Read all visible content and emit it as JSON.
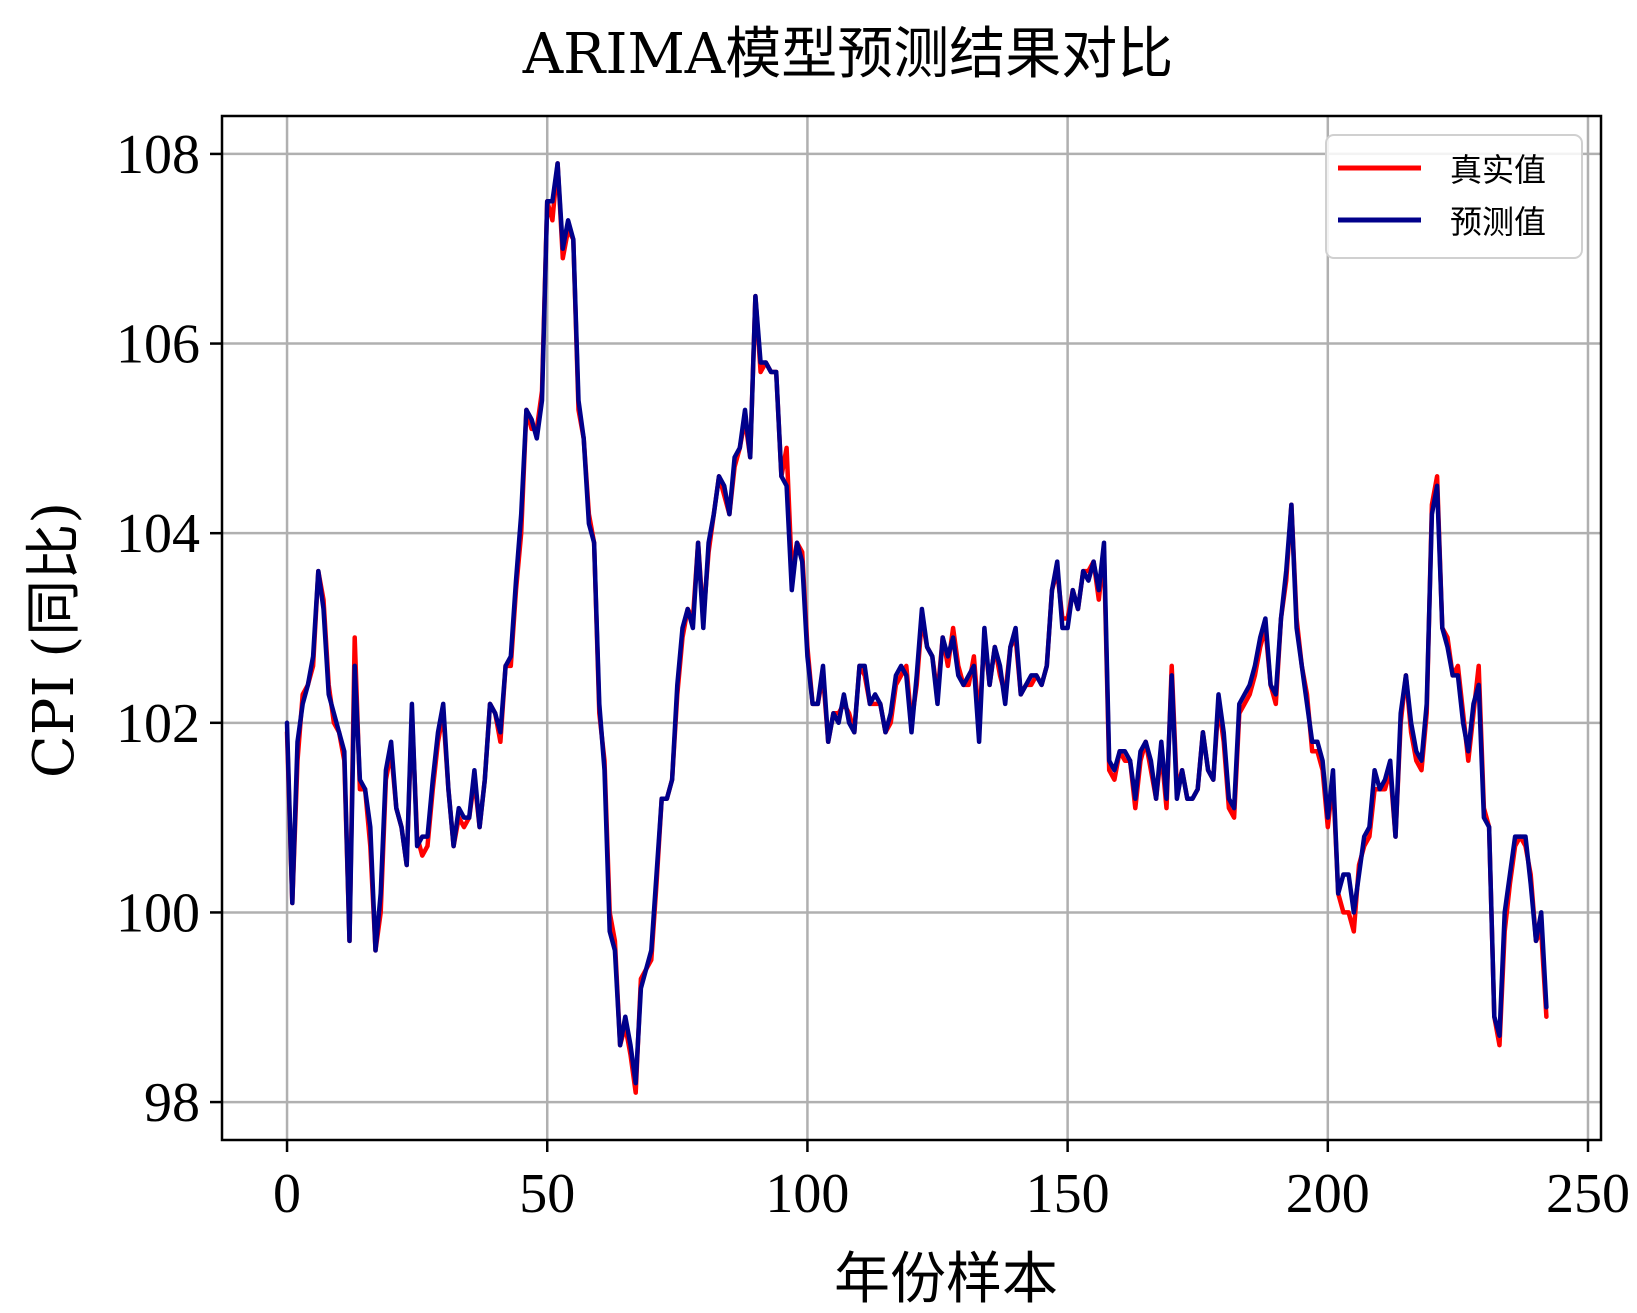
{
  "chart_data": {
    "type": "line",
    "title": "ARIMA模型预测结果对比",
    "xlabel": "年份样本",
    "ylabel": "CPI (同比)",
    "xlim": [
      -12.5,
      252.5
    ],
    "ylim": [
      97.6,
      108.4
    ],
    "x_ticks": [
      0,
      50,
      100,
      150,
      200,
      250
    ],
    "x_tick_labels": [
      "0",
      "50",
      "100",
      "150",
      "200",
      "250"
    ],
    "y_ticks": [
      98,
      100,
      102,
      104,
      106,
      108
    ],
    "y_tick_labels": [
      "98",
      "100",
      "102",
      "104",
      "106",
      "108"
    ],
    "grid": true,
    "legend_position": "top-right",
    "series": [
      {
        "name": "真实值",
        "color": "#ff0000",
        "values": [
          101.9,
          100.1,
          101.6,
          102.3,
          102.4,
          102.6,
          103.6,
          103.3,
          102.4,
          102.0,
          101.9,
          101.6,
          99.7,
          102.9,
          101.3,
          101.3,
          100.7,
          99.6,
          100.0,
          101.4,
          101.7,
          101.1,
          100.9,
          100.5,
          102.1,
          100.8,
          100.6,
          100.7,
          101.3,
          101.8,
          102.1,
          101.3,
          100.7,
          101.0,
          100.9,
          101.0,
          101.4,
          100.9,
          101.4,
          102.2,
          102.1,
          101.8,
          102.6,
          102.6,
          103.4,
          104.0,
          105.3,
          105.1,
          105.1,
          105.5,
          107.5,
          107.3,
          107.9,
          106.9,
          107.2,
          107.1,
          105.3,
          105.0,
          104.2,
          103.9,
          102.1,
          101.6,
          100.0,
          99.7,
          98.6,
          98.8,
          98.5,
          98.1,
          99.3,
          99.4,
          99.5,
          100.3,
          101.2,
          101.2,
          101.4,
          102.3,
          102.9,
          103.2,
          103.1,
          103.9,
          103.1,
          103.8,
          104.2,
          104.6,
          104.4,
          104.2,
          104.7,
          104.9,
          105.2,
          104.8,
          106.5,
          105.7,
          105.8,
          105.7,
          105.7,
          104.6,
          104.9,
          103.6,
          103.9,
          103.8,
          102.8,
          102.2,
          102.2,
          102.5,
          101.8,
          102.1,
          102.1,
          102.2,
          102.1,
          101.9,
          102.6,
          102.5,
          102.2,
          102.2,
          102.2,
          101.9,
          102.0,
          102.4,
          102.5,
          102.6,
          102.0,
          102.4,
          103.1,
          102.8,
          102.7,
          102.3,
          102.9,
          102.6,
          103.0,
          102.6,
          102.4,
          102.4,
          102.7,
          102.0,
          102.9,
          102.4,
          102.8,
          102.5,
          102.3,
          102.8,
          102.9,
          102.3,
          102.4,
          102.4,
          102.5,
          102.4,
          102.6,
          103.4,
          103.6,
          103.1,
          103.1,
          103.4,
          103.2,
          103.6,
          103.6,
          103.7,
          103.3,
          103.8,
          101.5,
          101.4,
          101.7,
          101.6,
          101.6,
          101.1,
          101.6,
          101.8,
          101.5,
          101.2,
          101.7,
          101.1,
          102.6,
          101.3,
          101.5,
          101.2,
          101.2,
          101.3,
          101.9,
          101.5,
          101.4,
          102.2,
          101.8,
          101.1,
          101.0,
          102.1,
          102.2,
          102.3,
          102.5,
          102.8,
          103.0,
          102.4,
          102.2,
          103.1,
          103.5,
          104.3,
          103.1,
          102.6,
          102.3,
          101.7,
          101.7,
          101.5,
          100.9,
          101.4,
          100.2,
          100.0,
          100.0,
          99.8,
          100.5,
          100.7,
          100.8,
          101.3,
          101.3,
          101.3,
          101.5,
          100.8,
          102.0,
          102.5,
          101.9,
          101.6,
          101.5,
          102.1,
          104.3,
          104.6,
          103.0,
          102.9,
          102.5,
          102.6,
          102.1,
          101.6,
          102.1,
          102.6,
          101.1,
          100.9,
          98.9,
          98.6,
          99.8,
          100.3,
          100.7,
          100.8,
          100.7,
          100.4,
          99.7,
          99.8,
          98.9
        ]
      },
      {
        "name": "预测值",
        "color": "#00008b",
        "values": [
          102.0,
          100.1,
          101.8,
          102.2,
          102.4,
          102.7,
          103.6,
          103.2,
          102.3,
          102.1,
          101.9,
          101.7,
          99.7,
          102.6,
          101.4,
          101.3,
          100.9,
          99.6,
          100.2,
          101.5,
          101.8,
          101.1,
          100.9,
          100.5,
          102.2,
          100.7,
          100.8,
          100.8,
          101.4,
          101.9,
          102.2,
          101.3,
          100.7,
          101.1,
          101.0,
          101.0,
          101.5,
          100.9,
          101.4,
          102.2,
          102.1,
          101.9,
          102.6,
          102.7,
          103.5,
          104.2,
          105.3,
          105.2,
          105.0,
          105.4,
          107.5,
          107.5,
          107.9,
          107.0,
          107.3,
          107.1,
          105.4,
          105.0,
          104.1,
          103.9,
          102.2,
          101.5,
          99.8,
          99.6,
          98.6,
          98.9,
          98.6,
          98.2,
          99.2,
          99.4,
          99.6,
          100.4,
          101.2,
          101.2,
          101.4,
          102.4,
          103.0,
          103.2,
          103.0,
          103.9,
          103.0,
          103.9,
          104.2,
          104.6,
          104.5,
          104.2,
          104.8,
          104.9,
          105.3,
          104.8,
          106.5,
          105.8,
          105.8,
          105.7,
          105.7,
          104.6,
          104.5,
          103.4,
          103.9,
          103.7,
          102.7,
          102.2,
          102.2,
          102.6,
          101.8,
          102.1,
          102.0,
          102.3,
          102.0,
          101.9,
          102.6,
          102.6,
          102.2,
          102.3,
          102.2,
          101.9,
          102.1,
          102.5,
          102.6,
          102.5,
          101.9,
          102.5,
          103.2,
          102.8,
          102.7,
          102.2,
          102.9,
          102.7,
          102.9,
          102.5,
          102.4,
          102.5,
          102.6,
          101.8,
          103.0,
          102.4,
          102.8,
          102.6,
          102.2,
          102.8,
          103.0,
          102.3,
          102.4,
          102.5,
          102.5,
          102.4,
          102.6,
          103.4,
          103.7,
          103.0,
          103.0,
          103.4,
          103.2,
          103.6,
          103.5,
          103.7,
          103.4,
          103.9,
          101.6,
          101.5,
          101.7,
          101.7,
          101.6,
          101.2,
          101.7,
          101.8,
          101.6,
          101.2,
          101.8,
          101.2,
          102.5,
          101.2,
          101.5,
          101.2,
          101.2,
          101.3,
          101.9,
          101.5,
          101.4,
          102.3,
          101.9,
          101.2,
          101.1,
          102.2,
          102.3,
          102.4,
          102.6,
          102.9,
          103.1,
          102.4,
          102.3,
          103.1,
          103.6,
          104.3,
          103.0,
          102.6,
          102.2,
          101.8,
          101.8,
          101.6,
          101.0,
          101.5,
          100.2,
          100.4,
          100.4,
          100.0,
          100.4,
          100.8,
          100.9,
          101.5,
          101.3,
          101.4,
          101.6,
          100.8,
          102.1,
          102.5,
          102.0,
          101.7,
          101.6,
          102.2,
          104.2,
          104.5,
          103.0,
          102.8,
          102.5,
          102.5,
          102.0,
          101.7,
          102.2,
          102.4,
          101.0,
          100.9,
          98.9,
          98.7,
          100.0,
          100.4,
          100.8,
          100.8,
          100.8,
          100.3,
          99.7,
          100.0,
          99.0
        ]
      }
    ]
  }
}
